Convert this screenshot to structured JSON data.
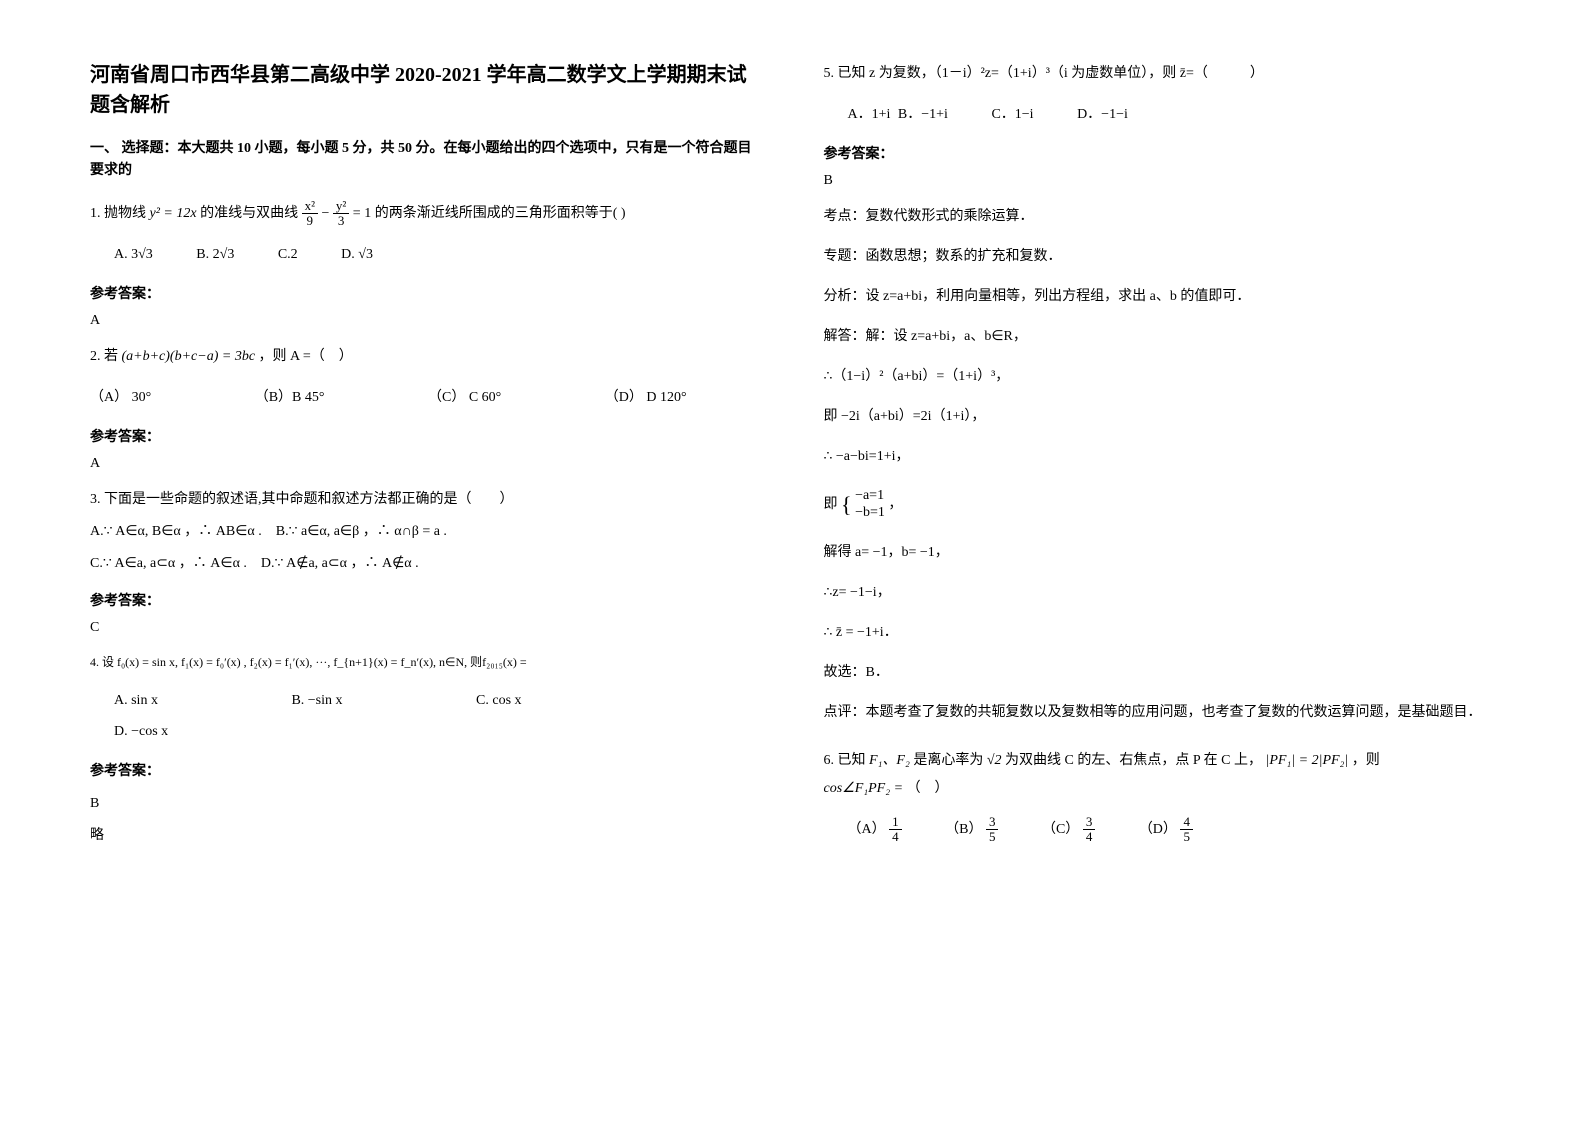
{
  "title": "河南省周口市西华县第二高级中学 2020-2021 学年高二数学文上学期期末试题含解析",
  "section1_heading": "一、 选择题：本大题共 10 小题，每小题 5 分，共 50 分。在每小题给出的四个选项中，只有是一个符合题目要求的",
  "q1": {
    "prefix": "1. 抛物线",
    "expr1": "y² = 12x",
    "mid1": "的准线与双曲线",
    "frac1_num": "x²",
    "frac1_den": "9",
    "minus": " − ",
    "frac2_num": "y²",
    "frac2_den": "3",
    "eq": " = 1",
    "suffix": "的两条渐近线所围成的三角形面积等于( )",
    "optA": "A. 3√3",
    "optB": "B. 2√3",
    "optC": "C.2",
    "optD": "D. √3",
    "answer_label": "参考答案：",
    "answer": "A"
  },
  "q2": {
    "prefix": "2. 若",
    "expr": "(a+b+c)(b+c−a) = 3bc",
    "mid": "，则 A =（　）",
    "optA": "（A） 30°",
    "optB": "（B）B  45°",
    "optC": "（C） C  60°",
    "optD": "（D） D  120°",
    "answer_label": "参考答案：",
    "answer": "A"
  },
  "q3": {
    "text": "3. 下面是一些命题的叙述语,其中命题和叙述方法都正确的是（　　）",
    "lineA": "A.∵ A∈α, B∈α ，∴ AB∈α .　B.∵ a∈α, a∈β ，∴ α∩β = a .",
    "lineC": "C.∵ A∈a, a⊂α ，∴ A∈α .　D.∵ A∉a, a⊂α ，∴ A∉α .",
    "answer_label": "参考答案：",
    "answer": "C"
  },
  "q4": {
    "text": "4. 设 f₀(x) = sin x, f₁(x) = f₀′(x) , f₂(x) = f₁′(x), ···, f_{n+1}(x) = f_n′(x), n∈N, 则f₂₀₁₅(x) =",
    "optA": "A.  sin x",
    "optB": "B.  −sin x",
    "optC": "C.  cos x",
    "optD": "D.  −cos x",
    "answer_label": "参考答案：",
    "answer": "B",
    "note": "略"
  },
  "q5": {
    "text": "5. 已知 z 为复数，（1－i）²z=（1+i）³（i 为虚数单位），则 z̄=（　　　）",
    "optA": "A．1+i",
    "optB": "B．−1+i",
    "optC": "C．1−i",
    "optD": "D．−1−i",
    "answer_label": "参考答案：",
    "answer": "B",
    "line_kd": "考点：复数代数形式的乘除运算．",
    "line_zt": "专题：函数思想；数系的扩充和复数．",
    "line_fx": "分析：设 z=a+bi，利用向量相等，列出方程组，求出 a、b 的值即可．",
    "line_jd": "解答：解：设 z=a+bi，a、b∈R，",
    "line_s1": "∴（1−i）²（a+bi）=（1+i）³，",
    "line_s2": "即 −2i（a+bi）=2i（1+i），",
    "line_s3": "∴ −a−bi=1+i，",
    "line_s4_pre": "即",
    "line_s4_a": "−a=1",
    "line_s4_b": "−b=1",
    "line_s4_suf": "，",
    "line_s5": "解得 a= −1，b= −1，",
    "line_s6": "∴z= −1−i，",
    "line_s7": "∴ z̄ = −1+i．",
    "line_s8": "故选：B．",
    "line_dp": "点评：本题考查了复数的共轭复数以及复数相等的应用问题，也考查了复数的代数运算问题，是基础题目．"
  },
  "q6": {
    "prefix": "6. 已知",
    "f12": "F₁、F₂",
    "mid1": "是离心率为",
    "sqrt2": "√2",
    "mid2": "为双曲线 C 的左、右焦点，点 P 在 C 上，",
    "cond": "|PF₁| = 2|PF₂|",
    "mid3": "，则",
    "cos": "cos∠F₁PF₂ =",
    "suffix": "（　）",
    "optA_label": "（A）",
    "optA_num": "1",
    "optA_den": "4",
    "optB_label": "（B）",
    "optB_num": "3",
    "optB_den": "5",
    "optC_label": "（C）",
    "optC_num": "3",
    "optC_den": "4",
    "optD_label": "（D）",
    "optD_num": "4",
    "optD_den": "5"
  }
}
